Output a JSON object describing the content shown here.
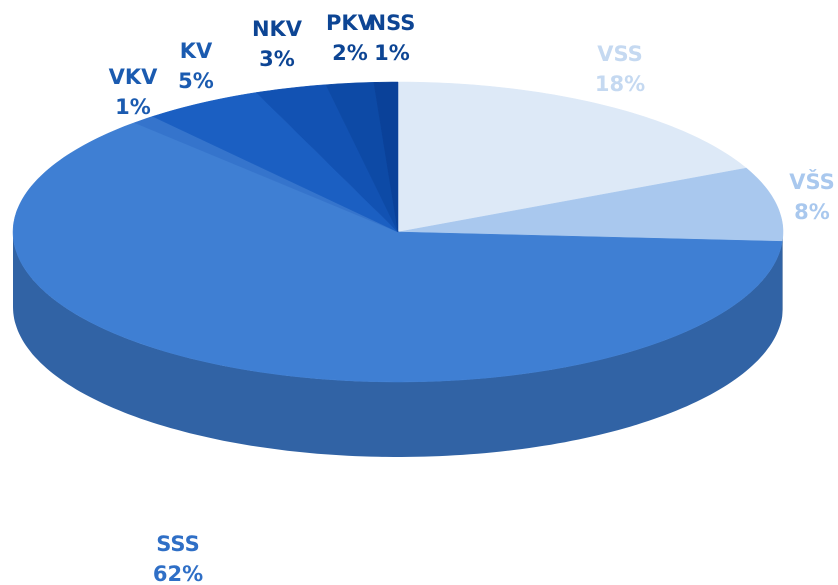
{
  "chart_data": {
    "type": "pie",
    "categories": [
      "VSS",
      "VŠS",
      "SSS",
      "VKV",
      "KV",
      "NKV",
      "PKV",
      "NSS"
    ],
    "values": [
      18,
      8,
      62,
      1,
      5,
      3,
      2,
      1
    ],
    "value_labels": [
      "18%",
      "8%",
      "62%",
      "1%",
      "5%",
      "3%",
      "2%",
      "1%"
    ],
    "colors": [
      "#dde9f7",
      "#a9c8ee",
      "#3f7fd3",
      "#3574cc",
      "#1b5fc2",
      "#1252b3",
      "#0d4aa6",
      "#0a4199"
    ],
    "label_colors": [
      "#c5d9f1",
      "#a9c8ee",
      "#2f6fc6",
      "#1b5bb0",
      "#1b5bb0",
      "#0d4594",
      "#0d4594",
      "#0d4594"
    ]
  }
}
